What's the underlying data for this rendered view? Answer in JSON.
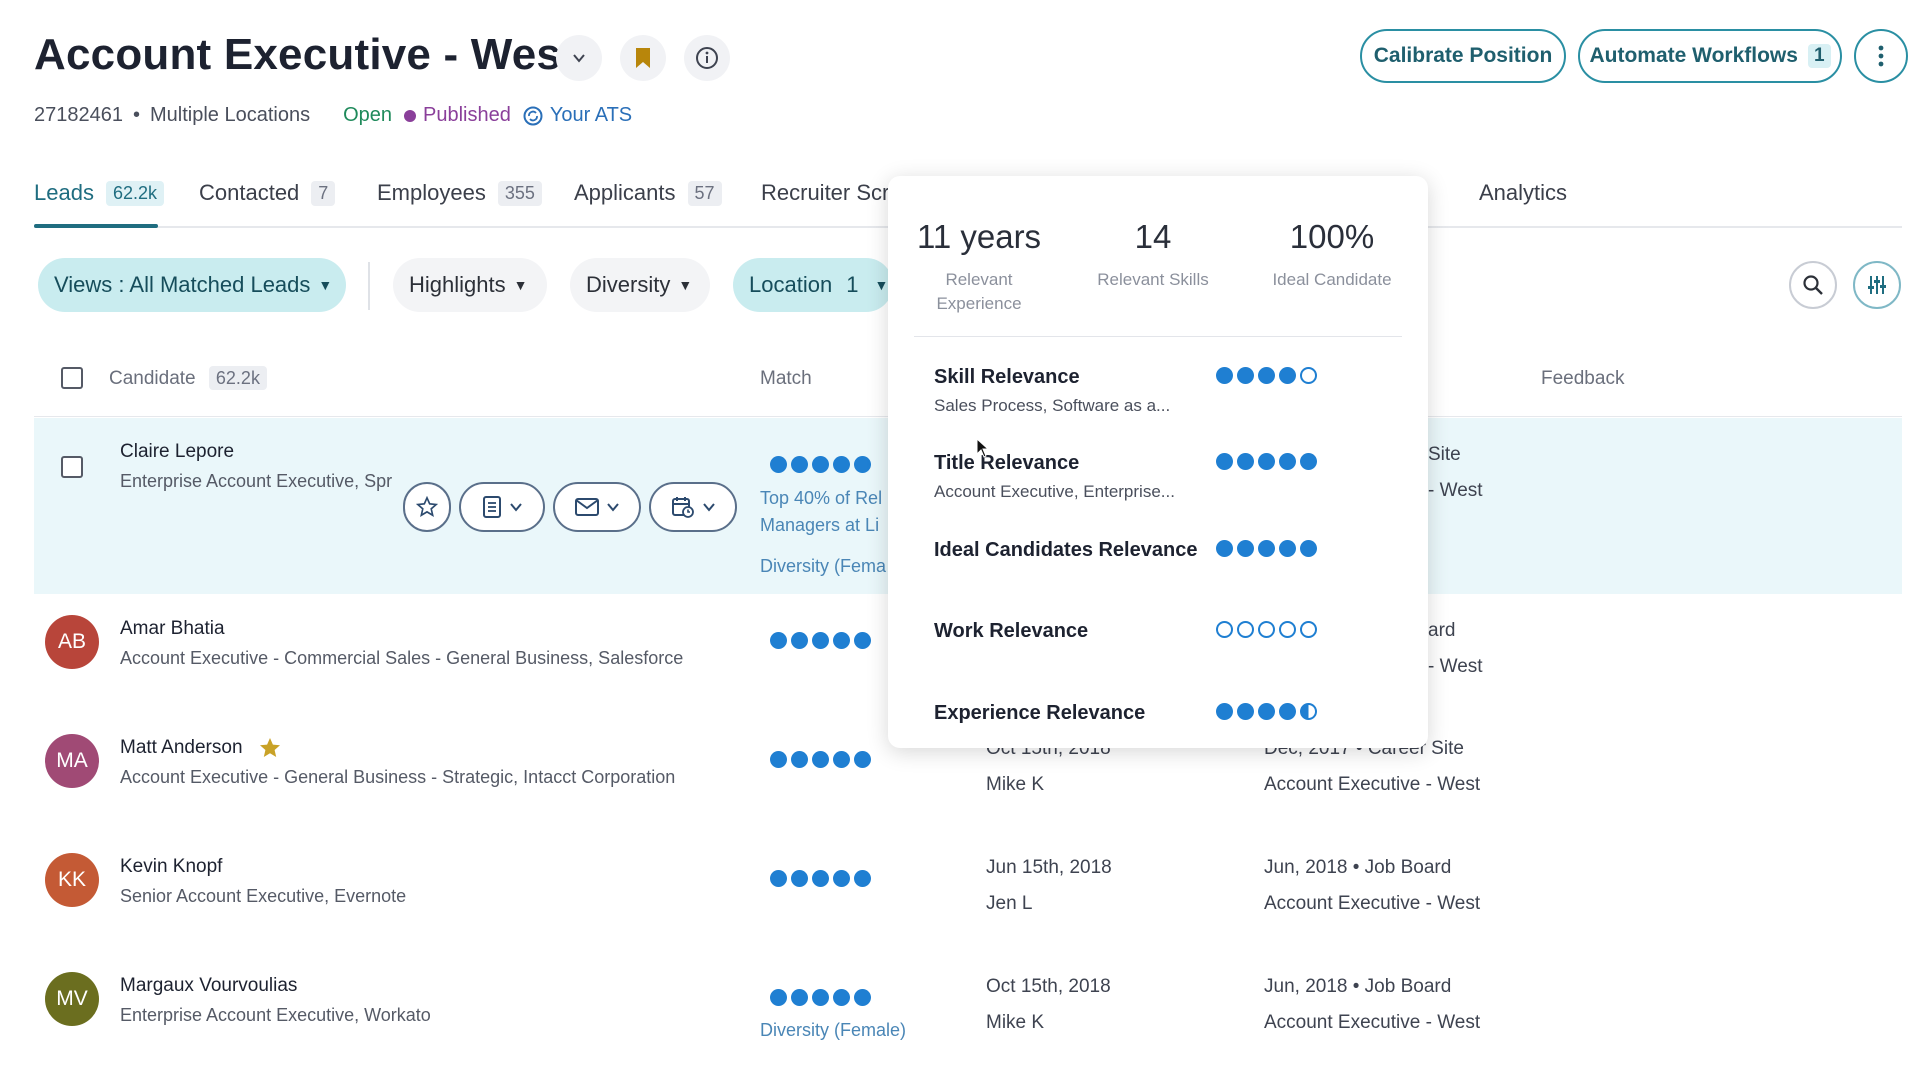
{
  "header": {
    "title": "Account Executive - West",
    "job_id": "27182461",
    "separator": "•",
    "location": "Multiple Locations",
    "status_open": "Open",
    "status_published": "Published",
    "ats": "Your ATS",
    "calibrate_label": "Calibrate Position",
    "automate_label": "Automate Workflows",
    "automate_count": "1"
  },
  "tabs": [
    {
      "label": "Leads",
      "count": "62.2k"
    },
    {
      "label": "Contacted",
      "count": "7"
    },
    {
      "label": "Employees",
      "count": "355"
    },
    {
      "label": "Applicants",
      "count": "57"
    },
    {
      "label": "Recruiter Scr",
      "count": ""
    },
    {
      "label": "Analytics",
      "count": ""
    }
  ],
  "filters": {
    "views": "Views : All Matched Leads",
    "highlights": "Highlights",
    "diversity": "Diversity",
    "location": "Location",
    "location_count": "1"
  },
  "table": {
    "col_candidate": "Candidate",
    "candidate_count": "62.2k",
    "col_match": "Match",
    "col_feedback": "Feedback",
    "rows": [
      {
        "name": "Claire Lepore",
        "title": "Enterprise Account Executive, Spr",
        "initials": "",
        "match_note_1": "Top 40% of Rel",
        "match_note_2": "Managers at Li",
        "match_note_3": "Diversity (Fema",
        "source_right": "Site",
        "position_right": "- West"
      },
      {
        "name": "Amar Bhatia",
        "title": "Account Executive - Commercial Sales - General Business, Salesforce",
        "initials": "AB",
        "source_right": "ard",
        "position_right": "- West"
      },
      {
        "name": "Matt Anderson",
        "title": "Account Executive - General Business - Strategic, Intacct Corporation",
        "initials": "MA",
        "contact_date": "Oct 15th, 2018",
        "contact_by": "Mike K",
        "source": "Dec, 2017 • Career Site",
        "position": "Account Executive - West"
      },
      {
        "name": "Kevin Knopf",
        "title": "Senior Account Executive, Evernote",
        "initials": "KK",
        "contact_date": "Jun 15th, 2018",
        "contact_by": "Jen L",
        "source": "Jun, 2018 • Job Board",
        "position": "Account Executive - West"
      },
      {
        "name": "Margaux Vourvoulias",
        "title": "Enterprise Account Executive, Workato",
        "initials": "MV",
        "contact_date": "Oct 15th, 2018",
        "contact_by": "Mike K",
        "source": "Jun, 2018 • Job Board",
        "position": "Account Executive - West",
        "match_note": "Diversity (Female)"
      }
    ]
  },
  "popover": {
    "stat1_value": "11 years",
    "stat1_label_1": "Relevant",
    "stat1_label_2": "Experience",
    "stat2_value": "14",
    "stat2_label": "Relevant Skills",
    "stat3_value": "100%",
    "stat3_label": "Ideal Candidate",
    "items": [
      {
        "title": "Skill Relevance",
        "detail": "Sales Process, Software as a...",
        "rating": 4,
        "max": 5
      },
      {
        "title": "Title Relevance",
        "detail": "Account Executive, Enterprise...",
        "rating": 5,
        "max": 5
      },
      {
        "title": "Ideal Candidates Relevance",
        "detail": "",
        "rating": 5,
        "max": 5
      },
      {
        "title": "Work Relevance",
        "detail": "",
        "rating": 0,
        "max": 5
      },
      {
        "title": "Experience Relevance",
        "detail": "",
        "rating": 4.5,
        "max": 5
      }
    ]
  },
  "colors": {
    "accent": "#1f6d80",
    "dot_blue": "#1f7fd2",
    "open_green": "#1f8a5b",
    "published_purple": "#8a3f9a",
    "bookmark_gold": "#b8860b",
    "star_gold": "#c9a227",
    "avatar_ab": "#b8453a",
    "avatar_ma": "#a04a75",
    "avatar_kk": "#c45a35",
    "avatar_mv": "#6b6e1f"
  }
}
